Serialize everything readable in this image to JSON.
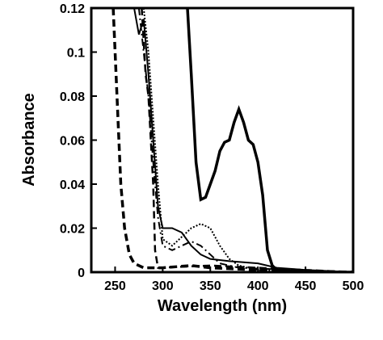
{
  "chart_data": {
    "type": "line",
    "x_label": "Wavelength (nm)",
    "y_label": "Absorbance",
    "xlim": [
      225,
      500
    ],
    "xticks": [
      250,
      300,
      350,
      400,
      450,
      500
    ],
    "ylim": [
      0,
      0.12
    ],
    "yticks": [
      0,
      0.02,
      0.04,
      0.06,
      0.08,
      0.1,
      0.12
    ],
    "series": [
      {
        "color": "#000000",
        "width": 3.5,
        "dash": "solid",
        "x": [
          326,
          330,
          335,
          340,
          345,
          350,
          355,
          360,
          365,
          370,
          375,
          380,
          385,
          390,
          395,
          400,
          405,
          410,
          415,
          420,
          450,
          500
        ],
        "values": [
          0.12,
          0.09,
          0.05,
          0.033,
          0.034,
          0.04,
          0.046,
          0.055,
          0.059,
          0.06,
          0.068,
          0.074,
          0.068,
          0.06,
          0.058,
          0.05,
          0.035,
          0.01,
          0.003,
          0.001,
          0,
          0
        ]
      },
      {
        "color": "#000000",
        "width": 2,
        "dash": "solid",
        "x": [
          270,
          275,
          280,
          285,
          290,
          295,
          300,
          310,
          320,
          330,
          340,
          350,
          370,
          400,
          420,
          450,
          500
        ],
        "values": [
          0.12,
          0.108,
          0.115,
          0.09,
          0.06,
          0.03,
          0.02,
          0.02,
          0.018,
          0.012,
          0.008,
          0.006,
          0.005,
          0.004,
          0.002,
          0.001,
          0
        ]
      },
      {
        "color": "#000000",
        "width": 2,
        "dash": "dotted",
        "x": [
          280,
          285,
          290,
          295,
          300,
          310,
          320,
          330,
          340,
          350,
          360,
          370,
          380,
          400,
          500
        ],
        "values": [
          0.12,
          0.1,
          0.07,
          0.04,
          0.015,
          0.012,
          0.016,
          0.02,
          0.022,
          0.02,
          0.012,
          0.006,
          0.003,
          0.001,
          0
        ]
      },
      {
        "color": "#000000",
        "width": 2,
        "dash": "dashdot",
        "x": [
          275,
          280,
          285,
          290,
          295,
          300,
          310,
          320,
          330,
          340,
          350,
          360,
          380,
          500
        ],
        "values": [
          0.12,
          0.1,
          0.08,
          0.05,
          0.025,
          0.012,
          0.01,
          0.012,
          0.014,
          0.012,
          0.008,
          0.004,
          0.002,
          0
        ]
      },
      {
        "color": "#000000",
        "width": 3.5,
        "dash": "dashed",
        "x": [
          248,
          252,
          256,
          260,
          265,
          270,
          280,
          300,
          330,
          350,
          400,
          500
        ],
        "values": [
          0.12,
          0.08,
          0.04,
          0.02,
          0.008,
          0.004,
          0.002,
          0.002,
          0.003,
          0.002,
          0.001,
          0
        ]
      },
      {
        "color": "#000000",
        "width": 2.5,
        "dash": "dashed",
        "x": [
          278,
          282,
          285,
          290,
          292,
          295,
          350,
          400,
          500
        ],
        "values": [
          0.12,
          0.09,
          0.08,
          0.04,
          0.01,
          0.002,
          0.003,
          0.002,
          0
        ]
      }
    ]
  }
}
